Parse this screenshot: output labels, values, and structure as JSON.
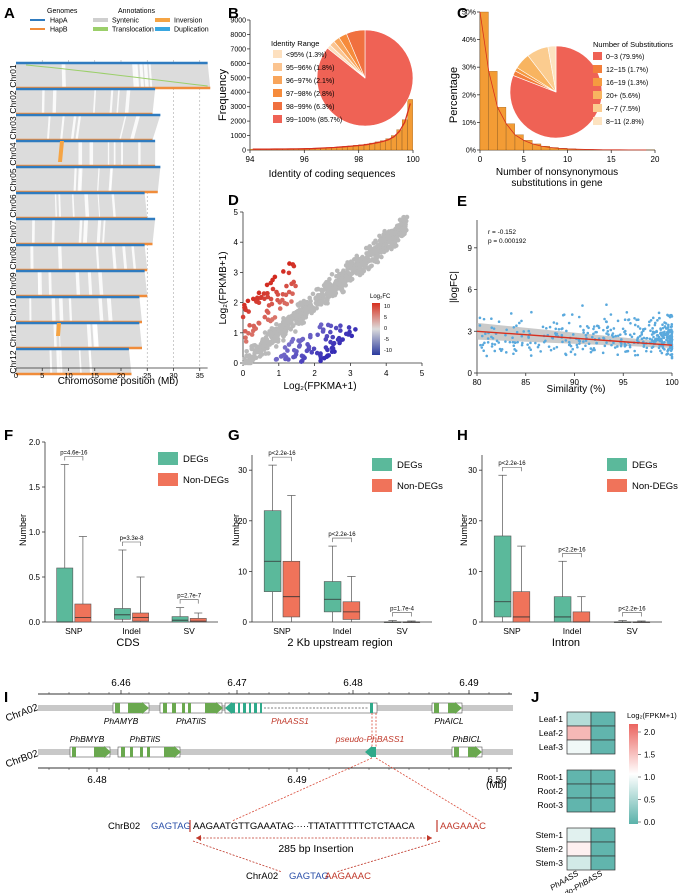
{
  "panels": {
    "A": {
      "letter": "A",
      "legend_genomes_title": "Genomes",
      "legend_hapA": "HapA",
      "legend_hapB": "HapB",
      "legend_annot_title": "Annotations",
      "legend_syntenic": "Syntenic",
      "legend_translocation": "Translocation",
      "legend_inversion": "Inversion",
      "legend_duplication": "Duplication",
      "chromosomes": [
        "Chr01",
        "Chr02",
        "Chr03",
        "Chr04",
        "Chr05",
        "Chr06",
        "Chr07",
        "Chr08",
        "Chr09",
        "Chr10",
        "Chr11",
        "Chr12"
      ],
      "hapA_lengths_mb": [
        36.5,
        26.5,
        27.5,
        26.5,
        27.5,
        24.5,
        26.5,
        24.5,
        24.5,
        23.5,
        23.5,
        21.5
      ],
      "hapB_lengths_mb": [
        37,
        26,
        26,
        26.5,
        27,
        25,
        26,
        25,
        25,
        24,
        24,
        22
      ],
      "xticks": [
        "0",
        "5",
        "10",
        "15",
        "20",
        "25",
        "30",
        "35"
      ],
      "xlabel": "Chromosome position (Mb)"
    },
    "B": {
      "letter": "B",
      "ylabel": "Frequency",
      "xlabel": "Identity of coding sequences",
      "legend_title": "Identity Range"
    },
    "C": {
      "letter": "C",
      "ylabel": "Percentage",
      "xlabel1": "Number of nonsynonymous",
      "xlabel2": "substitutions in gene",
      "legend_title": "Number of Substitutions"
    },
    "D": {
      "letter": "D",
      "ylabel": "Log₂(FPKMB+1)",
      "xlabel": "Log₂(FPKMA+1)",
      "colorbar_title": "Log₂FC",
      "colorbar_ticks": [
        "10",
        "5",
        "0",
        "-5",
        "-10"
      ]
    },
    "E": {
      "letter": "E",
      "ylabel": "|logFC|",
      "xlabel": "Similarity (%)",
      "stat_r": "r = -0.152",
      "stat_p": "p = 0.000192"
    },
    "F": {
      "letter": "F",
      "ylabel": "Number",
      "xlabel": "CDS",
      "legend_degs": "DEGs",
      "legend_nondegs": "Non-DEGs"
    },
    "G": {
      "letter": "G",
      "ylabel": "Number",
      "xlabel": "2 Kb upstream region",
      "legend_degs": "DEGs",
      "legend_nondegs": "Non-DEGs"
    },
    "H": {
      "letter": "H",
      "ylabel": "Number",
      "xlabel": "Intron",
      "legend_degs": "DEGs",
      "legend_nondegs": "Non-DEGs"
    },
    "I": {
      "letter": "I",
      "chrA": "ChrA02",
      "chrB": "ChrB02",
      "ticksA": [
        "6.46",
        "6.47",
        "6.48",
        "6.49"
      ],
      "ticksB": [
        "6.48",
        "6.49",
        "6.50"
      ],
      "unit": "(Mb)",
      "genesA": [
        "PhAMYB",
        "PhATilS",
        "PhAASS1",
        "PhAICL"
      ],
      "genesB": [
        "PhBMYB",
        "PhBTilS",
        "pseudo-PhBASS1",
        "PhBICL"
      ],
      "seqB_label": "ChrB02",
      "seqB_left": "GAGTAG",
      "seqB_mid1": "AAGAATGTTGAAATAC",
      "seqB_dots": "·······",
      "seqB_mid2": "TTATATTTTTCTCTAACA",
      "seqB_right": "AAGAAAC",
      "insertion_label": "285 bp Insertion",
      "seqA_label": "ChrA02",
      "seqA_left": "GAGTAG",
      "seqA_right": "AAGAAAC"
    },
    "J": {
      "letter": "J",
      "colorbar_title": "Log₂(FPKM+1)",
      "colorbar_ticks": [
        "2.0",
        "1.5",
        "1.0",
        "0.5",
        "0.0"
      ],
      "col_labels": [
        "PhAASS",
        "Pseudo-PhBASS"
      ],
      "groups": [
        {
          "rows": [
            "Leaf-1",
            "Leaf-2",
            "Leaf-3"
          ],
          "values": [
            [
              0.6,
              0.05
            ],
            [
              1.6,
              0.05
            ],
            [
              1.0,
              0.05
            ]
          ]
        },
        {
          "rows": [
            "Root-1",
            "Root-2",
            "Root-3"
          ],
          "values": [
            [
              0.05,
              0.05
            ],
            [
              0.05,
              0.05
            ],
            [
              0.05,
              0.05
            ]
          ]
        },
        {
          "rows": [
            "Stem-1",
            "Stem-2",
            "Stem-3"
          ],
          "values": [
            [
              0.9,
              0.05
            ],
            [
              1.2,
              0.05
            ],
            [
              0.8,
              0.05
            ]
          ]
        }
      ]
    }
  },
  "chart_data": [
    {
      "id": "B",
      "type": "bar",
      "title": "",
      "xlabel": "Identity of coding sequences",
      "ylabel": "Frequency",
      "xlim": [
        94,
        100
      ],
      "ylim": [
        0,
        9000
      ],
      "xticks": [
        "94",
        "96",
        "98",
        "100"
      ],
      "yticks": [
        "0",
        "1000",
        "2000",
        "3000",
        "4000",
        "5000",
        "6000",
        "7000",
        "8000",
        "9000"
      ],
      "bins_start": 94,
      "bin_width": 0.2,
      "values": [
        60,
        60,
        60,
        60,
        70,
        70,
        75,
        80,
        85,
        90,
        100,
        110,
        130,
        150,
        170,
        190,
        220,
        250,
        280,
        320,
        360,
        410,
        480,
        560,
        650,
        780,
        1000,
        1400,
        2100,
        3500
      ],
      "curve_color": "#d7301f",
      "bar_color": "#f39c35",
      "pie": {
        "labels": [
          "<95% (1.3%)",
          "95~96% (1.8%)",
          "96~97% (2.1%)",
          "97~98% (2.8%)",
          "98~99% (6.3%)",
          "99~100% (85.7%)"
        ],
        "values": [
          1.3,
          1.8,
          2.1,
          2.8,
          6.3,
          85.7
        ],
        "colors": [
          "#fde0bf",
          "#fbc490",
          "#f8a55b",
          "#f68b3b",
          "#f0703f",
          "#ef6255"
        ]
      }
    },
    {
      "id": "C",
      "type": "bar",
      "xlabel": "Number of nonsynonymous substitutions in gene",
      "ylabel": "Percentage",
      "xlim": [
        0,
        20
      ],
      "ylim": [
        0,
        50
      ],
      "xticks": [
        "0",
        "5",
        "10",
        "15",
        "20"
      ],
      "yticks": [
        "0%",
        "10%",
        "20%",
        "30%",
        "40%",
        "50%"
      ],
      "values": [
        50,
        28.5,
        15.5,
        9.5,
        5.5,
        3.5,
        2.2,
        1.4,
        0.9,
        0.6,
        0.4,
        0.3,
        0.2,
        0.15,
        0.1,
        0.08,
        0.06,
        0.05,
        0.04,
        0.03
      ],
      "bar_color": "#f39c35",
      "pie": {
        "labels": [
          "0~3 (79.9%)",
          "12~15 (1.7%)",
          "16~19 (1.3%)",
          "20+ (5.6%)",
          "4~7 (7.5%)",
          "8~11 (2.8%)"
        ],
        "values": [
          79.9,
          1.7,
          1.3,
          5.6,
          7.5,
          2.8
        ],
        "colors": [
          "#ef6255",
          "#f37e3a",
          "#f59a40",
          "#f8b460",
          "#fbcc8f",
          "#fde3c0"
        ]
      }
    },
    {
      "id": "D",
      "type": "scatter",
      "xlabel": "Log₂(FPKMA+1)",
      "ylabel": "Log₂(FPKMB+1)",
      "xlim": [
        0,
        5
      ],
      "ylim": [
        0,
        5
      ],
      "xticks": [
        "0",
        "1",
        "2",
        "3",
        "4",
        "5"
      ],
      "yticks": [
        "0",
        "1",
        "2",
        "3",
        "4",
        "5"
      ],
      "note": "Dense diagonal cloud of grey points with red points above diagonal (higher in B) and blue below"
    },
    {
      "id": "E",
      "type": "scatter",
      "xlabel": "Similarity (%)",
      "ylabel": "|logFC|",
      "xlim": [
        80,
        100
      ],
      "ylim": [
        0,
        11
      ],
      "xticks": [
        "80",
        "85",
        "90",
        "95",
        "100"
      ],
      "yticks": [
        "0",
        "3",
        "6",
        "9"
      ],
      "regression": {
        "x": [
          80,
          100
        ],
        "y": [
          3.0,
          2.0
        ]
      },
      "annotation": [
        "r = -0.152",
        "p = 0.000192"
      ]
    },
    {
      "id": "F",
      "type": "box",
      "xlabel": "CDS",
      "ylabel": "Number",
      "categories": [
        "SNP",
        "Indel",
        "SV"
      ],
      "ylim": [
        0,
        2
      ],
      "yticks": [
        "0.0",
        "0.5",
        "1.0",
        "1.5",
        "2.0"
      ],
      "series": [
        {
          "name": "DEGs",
          "color": "#5bb99b",
          "boxes": [
            {
              "min": 0,
              "q1": 0,
              "med": 0,
              "q3": 0.6,
              "max": 1.75
            },
            {
              "min": 0,
              "q1": 0.03,
              "med": 0.08,
              "q3": 0.15,
              "max": 0.8
            },
            {
              "min": 0,
              "q1": 0,
              "med": 0.02,
              "q3": 0.06,
              "max": 0.16
            }
          ]
        },
        {
          "name": "Non-DEGs",
          "color": "#f0735a",
          "boxes": [
            {
              "min": 0,
              "q1": 0,
              "med": 0.05,
              "q3": 0.2,
              "max": 0.95
            },
            {
              "min": 0,
              "q1": 0.01,
              "med": 0.05,
              "q3": 0.1,
              "max": 0.5
            },
            {
              "min": 0,
              "q1": 0,
              "med": 0.01,
              "q3": 0.04,
              "max": 0.1
            }
          ]
        }
      ],
      "pvalues": [
        "p=4.6e-16",
        "p=3.3e-8",
        "p=2.7e-7"
      ]
    },
    {
      "id": "G",
      "type": "box",
      "xlabel": "2 Kb upstream region",
      "ylabel": "Number",
      "categories": [
        "SNP",
        "Indel",
        "SV"
      ],
      "ylim": [
        0,
        33
      ],
      "yticks": [
        "0",
        "10",
        "20",
        "30"
      ],
      "series": [
        {
          "name": "DEGs",
          "color": "#5bb99b",
          "boxes": [
            {
              "min": 0,
              "q1": 6,
              "med": 12,
              "q3": 22,
              "max": 31
            },
            {
              "min": 0,
              "q1": 2,
              "med": 4.5,
              "q3": 8,
              "max": 15
            },
            {
              "min": 0,
              "q1": 0,
              "med": 0,
              "q3": 0,
              "max": 0.3
            }
          ]
        },
        {
          "name": "Non-DEGs",
          "color": "#f0735a",
          "boxes": [
            {
              "min": 0,
              "q1": 1,
              "med": 5,
              "q3": 12,
              "max": 25
            },
            {
              "min": 0,
              "q1": 0.5,
              "med": 2,
              "q3": 4,
              "max": 9
            },
            {
              "min": 0,
              "q1": 0,
              "med": 0,
              "q3": 0,
              "max": 0.2
            }
          ]
        }
      ],
      "pvalues": [
        "p<2.2e-16",
        "p<2.2e-16",
        "p=1.7e-4"
      ]
    },
    {
      "id": "H",
      "type": "box",
      "xlabel": "Intron",
      "ylabel": "Number",
      "categories": [
        "SNP",
        "Indel",
        "SV"
      ],
      "ylim": [
        0,
        33
      ],
      "yticks": [
        "0",
        "10",
        "20",
        "30"
      ],
      "series": [
        {
          "name": "DEGs",
          "color": "#5bb99b",
          "boxes": [
            {
              "min": 0,
              "q1": 1,
              "med": 4,
              "q3": 17,
              "max": 29
            },
            {
              "min": 0,
              "q1": 0,
              "med": 1,
              "q3": 5,
              "max": 12
            },
            {
              "min": 0,
              "q1": 0,
              "med": 0,
              "q3": 0,
              "max": 0.3
            }
          ]
        },
        {
          "name": "Non-DEGs",
          "color": "#f0735a",
          "boxes": [
            {
              "min": 0,
              "q1": 0,
              "med": 1,
              "q3": 6,
              "max": 15
            },
            {
              "min": 0,
              "q1": 0,
              "med": 0,
              "q3": 2,
              "max": 5
            },
            {
              "min": 0,
              "q1": 0,
              "med": 0,
              "q3": 0,
              "max": 0.2
            }
          ]
        }
      ],
      "pvalues": [
        "p<2.2e-16",
        "p<2.2e-16",
        "p<2.2e-16"
      ]
    }
  ]
}
